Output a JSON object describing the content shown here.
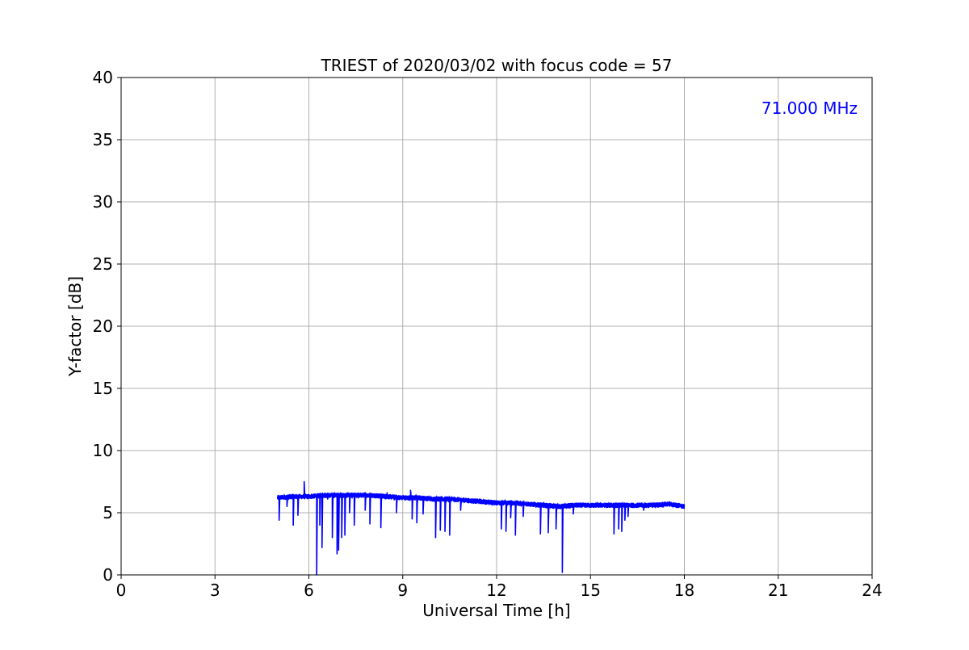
{
  "chart_data": {
    "type": "line",
    "title": "TRIEST of 2020/03/02 with focus code = 57",
    "xlabel": "Universal Time [h]",
    "ylabel": "Y-factor [dB]",
    "xlim": [
      0,
      24
    ],
    "ylim": [
      0,
      40
    ],
    "xticks": [
      "0",
      "3",
      "6",
      "9",
      "12",
      "15",
      "18",
      "21",
      "24"
    ],
    "yticks": [
      "0",
      "5",
      "10",
      "15",
      "20",
      "25",
      "30",
      "35",
      "40"
    ],
    "grid": true,
    "annotation": "71.000 MHz",
    "series": [
      {
        "color": "#0000ff",
        "baseline": [
          [
            5.0,
            6.2
          ],
          [
            5.5,
            6.3
          ],
          [
            6.0,
            6.3
          ],
          [
            6.5,
            6.4
          ],
          [
            7.0,
            6.4
          ],
          [
            7.5,
            6.4
          ],
          [
            8.0,
            6.4
          ],
          [
            8.5,
            6.3
          ],
          [
            9.0,
            6.2
          ],
          [
            9.5,
            6.2
          ],
          [
            10.0,
            6.1
          ],
          [
            10.5,
            6.1
          ],
          [
            11.0,
            6.0
          ],
          [
            11.5,
            5.9
          ],
          [
            12.0,
            5.8
          ],
          [
            12.5,
            5.8
          ],
          [
            13.0,
            5.7
          ],
          [
            13.5,
            5.6
          ],
          [
            14.0,
            5.5
          ],
          [
            14.5,
            5.6
          ],
          [
            15.0,
            5.6
          ],
          [
            15.5,
            5.6
          ],
          [
            16.0,
            5.6
          ],
          [
            16.5,
            5.6
          ],
          [
            17.0,
            5.6
          ],
          [
            17.5,
            5.7
          ],
          [
            18.0,
            5.5
          ]
        ],
        "spikes": [
          [
            5.05,
            4.4
          ],
          [
            5.3,
            5.5
          ],
          [
            5.5,
            4.0
          ],
          [
            5.65,
            4.8
          ],
          [
            5.85,
            7.5
          ],
          [
            6.25,
            0.0
          ],
          [
            6.35,
            4.0
          ],
          [
            6.42,
            2.2
          ],
          [
            6.6,
            6.1
          ],
          [
            6.75,
            3.0
          ],
          [
            6.9,
            1.7
          ],
          [
            6.95,
            2.0
          ],
          [
            7.05,
            3.0
          ],
          [
            7.15,
            3.2
          ],
          [
            7.3,
            5.0
          ],
          [
            7.45,
            4.0
          ],
          [
            7.8,
            5.2
          ],
          [
            7.95,
            4.1
          ],
          [
            8.3,
            3.8
          ],
          [
            8.5,
            6.6
          ],
          [
            8.8,
            5.0
          ],
          [
            9.25,
            6.8
          ],
          [
            9.3,
            4.5
          ],
          [
            9.45,
            4.2
          ],
          [
            9.65,
            4.9
          ],
          [
            10.05,
            3.0
          ],
          [
            10.2,
            3.6
          ],
          [
            10.35,
            3.5
          ],
          [
            10.5,
            3.2
          ],
          [
            10.85,
            5.2
          ],
          [
            12.15,
            3.7
          ],
          [
            12.3,
            3.5
          ],
          [
            12.45,
            4.6
          ],
          [
            12.6,
            3.2
          ],
          [
            12.85,
            4.7
          ],
          [
            13.4,
            3.3
          ],
          [
            13.65,
            3.4
          ],
          [
            13.9,
            3.7
          ],
          [
            14.1,
            0.2
          ],
          [
            14.15,
            5.5
          ],
          [
            14.45,
            4.9
          ],
          [
            15.75,
            3.3
          ],
          [
            15.9,
            3.7
          ],
          [
            16.0,
            3.5
          ],
          [
            16.1,
            4.4
          ],
          [
            16.2,
            4.7
          ],
          [
            16.7,
            5.2
          ]
        ]
      }
    ]
  }
}
